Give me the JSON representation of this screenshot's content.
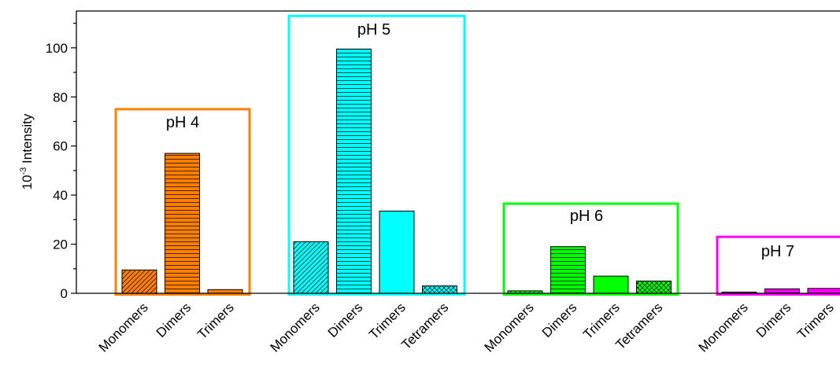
{
  "chart_data": {
    "type": "bar",
    "ylabel": "10",
    "ylabel_superscript": "-3",
    "ylabel_suffix": " Intensity",
    "ylim": [
      0,
      115
    ],
    "yticks": [
      0,
      20,
      40,
      60,
      80,
      100
    ],
    "grid": false,
    "legend": "none",
    "groups": [
      {
        "label": "pH 4",
        "color": "#ff7f00",
        "categories": [
          "Monomers",
          "Dimers",
          "Trimers"
        ],
        "values": [
          9.5,
          57,
          1.5
        ],
        "patterns": [
          "diagonal",
          "horizontal",
          "solid"
        ]
      },
      {
        "label": "pH 5",
        "color": "#00ffff",
        "categories": [
          "Monomers",
          "Dimers",
          "Trimers",
          "Tetramers"
        ],
        "values": [
          21,
          99.5,
          33.5,
          3
        ],
        "patterns": [
          "diagonal",
          "horizontal",
          "solid",
          "crosshatch"
        ]
      },
      {
        "label": "pH 6",
        "color": "#00ff00",
        "categories": [
          "Monomers",
          "Dimers",
          "Trimers",
          "Tetramers"
        ],
        "values": [
          1,
          19,
          7,
          5
        ],
        "patterns": [
          "diagonal",
          "horizontal",
          "solid",
          "crosshatch"
        ]
      },
      {
        "label": "pH 7",
        "color": "#ff00ff",
        "categories": [
          "Monomers",
          "Dimers",
          "Trimers"
        ],
        "values": [
          0.5,
          1.8,
          2
        ],
        "patterns": [
          "diagonal",
          "horizontal",
          "solid"
        ]
      }
    ]
  }
}
